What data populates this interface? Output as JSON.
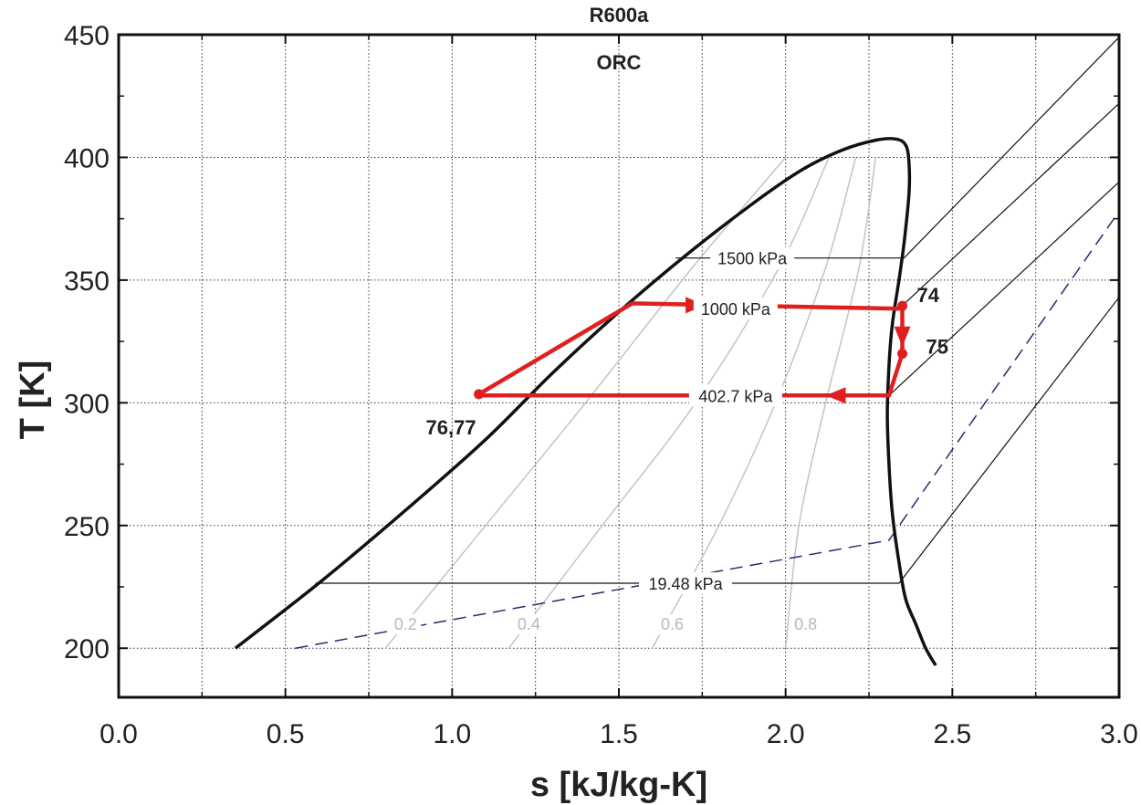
{
  "chart_data": {
    "type": "line",
    "title": "R600a",
    "subtitle": "ORC",
    "xlabel": "s [kJ/kg-K]",
    "ylabel": "T [K]",
    "xlim": [
      0.0,
      3.0
    ],
    "ylim": [
      180,
      450
    ],
    "x_ticks": [
      "0.0",
      "0.5",
      "1.0",
      "1.5",
      "2.0",
      "2.5",
      "3.0"
    ],
    "y_ticks": [
      "200",
      "250",
      "300",
      "350",
      "400",
      "450"
    ],
    "grid": true,
    "colors": {
      "saturation": "#111111",
      "isobar": "#111111",
      "quality": "#c4c4c4",
      "dashed": "#2a2a6e",
      "cycle": "#e02020"
    },
    "saturation_dome": {
      "x": [
        0.35,
        0.6,
        0.85,
        1.1,
        1.3,
        1.5,
        1.7,
        1.9,
        2.05,
        2.17,
        2.27,
        2.33,
        2.36,
        2.37,
        2.37,
        2.355,
        2.34,
        2.32,
        2.31,
        2.305,
        2.31,
        2.32,
        2.34,
        2.36,
        2.39,
        2.42,
        2.45
      ],
      "y": [
        200,
        226.5,
        255,
        285,
        312,
        337,
        360,
        381,
        395,
        403,
        407,
        407.5,
        405,
        398,
        385,
        365,
        350,
        332,
        315,
        295,
        275,
        255,
        235,
        220,
        210,
        200,
        193
      ]
    },
    "isobars": [
      {
        "label": "1500 kPa",
        "label_x": 1.9,
        "x": [
          1.67,
          2.355,
          3.0
        ],
        "y": [
          359,
          359,
          449
        ]
      },
      {
        "label": "1000 kPa",
        "label_x": 1.85,
        "x": [
          2.34,
          3.0
        ],
        "y": [
          338.3,
          422
        ]
      },
      {
        "label": "402.7 kPa",
        "label_x": 1.85,
        "x": [
          2.31,
          3.0
        ],
        "y": [
          303,
          390
        ]
      },
      {
        "label": "19.48 kPa",
        "label_x": 1.7,
        "x": [
          0.59,
          2.34,
          3.0
        ],
        "y": [
          226.5,
          226.5,
          343
        ]
      }
    ],
    "dashed_line": {
      "x": [
        0.53,
        2.31,
        3.0
      ],
      "y": [
        200,
        244,
        378
      ]
    },
    "quality_lines": [
      {
        "label": "0.2",
        "x": [
          0.8,
          1.1,
          1.4,
          1.72,
          2.0
        ],
        "y": [
          200,
          250,
          300,
          355,
          400
        ]
      },
      {
        "label": "0.4",
        "x": [
          1.17,
          1.45,
          1.73,
          1.98,
          2.13
        ],
        "y": [
          200,
          250,
          300,
          355,
          400
        ]
      },
      {
        "label": "0.6",
        "x": [
          1.6,
          1.8,
          1.97,
          2.12,
          2.21
        ],
        "y": [
          200,
          250,
          300,
          355,
          400
        ]
      },
      {
        "label": "0.8",
        "x": [
          2.0,
          2.04,
          2.12,
          2.22,
          2.27
        ],
        "y": [
          200,
          250,
          300,
          355,
          400
        ]
      }
    ],
    "cycle": {
      "x": [
        2.35,
        2.35,
        2.31,
        1.08,
        1.08,
        1.54,
        2.35
      ],
      "y": [
        338.3,
        320,
        303,
        303,
        303.5,
        340.5,
        338.3
      ]
    },
    "state_points": [
      {
        "label": "74",
        "x": 2.35,
        "y": 339.5
      },
      {
        "label": "75",
        "x": 2.35,
        "y": 320
      },
      {
        "label": "76,77",
        "x": 1.08,
        "y": 303.5
      }
    ]
  }
}
